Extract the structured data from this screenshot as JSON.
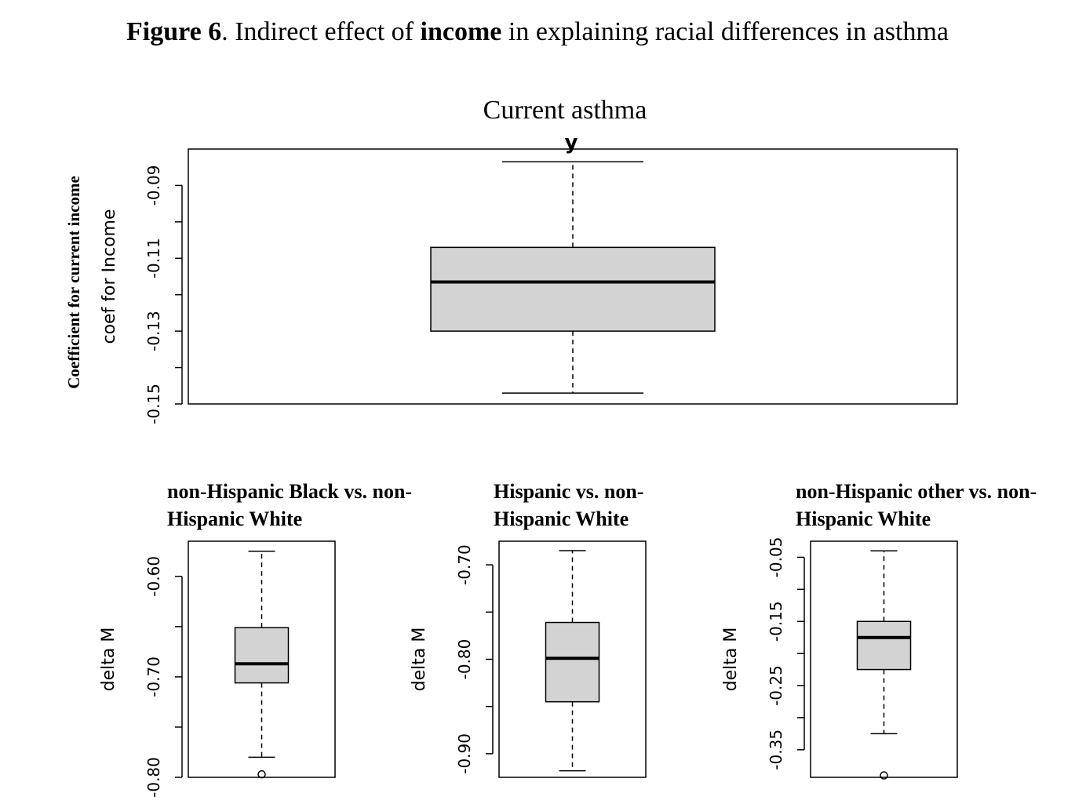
{
  "figure": {
    "title_bold_1": "Figure 6",
    "title_text_1": ". Indirect effect of ",
    "title_bold_2": "income",
    "title_text_2": " in explaining racial differences in asthma"
  },
  "chart_data": [
    {
      "type": "box",
      "title": "Current asthma",
      "box_label": "y",
      "ylabel": "coef for Income",
      "outer_ylabel": "Coefficient for current income",
      "yticks": [
        -0.09,
        -0.1,
        -0.11,
        -0.12,
        -0.13,
        -0.14,
        -0.15
      ],
      "ytick_labels": [
        "-0.09",
        "",
        "-0.11",
        "",
        "-0.13",
        "",
        "-0.15"
      ],
      "ylim": [
        -0.15,
        -0.08
      ],
      "box": {
        "whisker_low": -0.147,
        "q1": -0.13,
        "median": -0.1165,
        "q3": -0.107,
        "whisker_high": -0.0835
      },
      "outliers": [],
      "box_color": "#d3d3d3"
    },
    {
      "type": "box",
      "title": "non-Hispanic Black vs. non-Hispanic White",
      "ylabel": "delta M",
      "yticks": [
        -0.6,
        -0.65,
        -0.7,
        -0.75,
        -0.8
      ],
      "ytick_labels": [
        "-0.60",
        "",
        "-0.70",
        "",
        "-0.80"
      ],
      "ylim": [
        -0.8,
        -0.565
      ],
      "box": {
        "whisker_low": -0.78,
        "q1": -0.706,
        "median": -0.687,
        "q3": -0.651,
        "whisker_high": -0.575
      },
      "outliers": [
        -0.797
      ],
      "box_color": "#d3d3d3"
    },
    {
      "type": "box",
      "title": "Hispanic vs. non-Hispanic White",
      "ylabel": "delta M",
      "yticks": [
        -0.7,
        -0.75,
        -0.8,
        -0.85,
        -0.9
      ],
      "ytick_labels": [
        "-0.70",
        "",
        "-0.80",
        "",
        "-0.90"
      ],
      "ylim": [
        -0.925,
        -0.675
      ],
      "box": {
        "whisker_low": -0.918,
        "q1": -0.845,
        "median": -0.799,
        "q3": -0.761,
        "whisker_high": -0.685
      },
      "outliers": [],
      "box_color": "#d3d3d3"
    },
    {
      "type": "box",
      "title": "non-Hispanic other vs. non-Hispanic White",
      "ylabel": "delta M",
      "yticks": [
        -0.05,
        -0.1,
        -0.15,
        -0.2,
        -0.25,
        -0.3,
        -0.35
      ],
      "ytick_labels": [
        "-0.05",
        "",
        "-0.15",
        "",
        "-0.25",
        "",
        "-0.35"
      ],
      "ylim": [
        -0.393,
        -0.025
      ],
      "box": {
        "whisker_low": -0.325,
        "q1": -0.225,
        "median": -0.175,
        "q3": -0.15,
        "whisker_high": -0.04
      },
      "outliers": [
        -0.39
      ],
      "box_color": "#d3d3d3"
    }
  ]
}
